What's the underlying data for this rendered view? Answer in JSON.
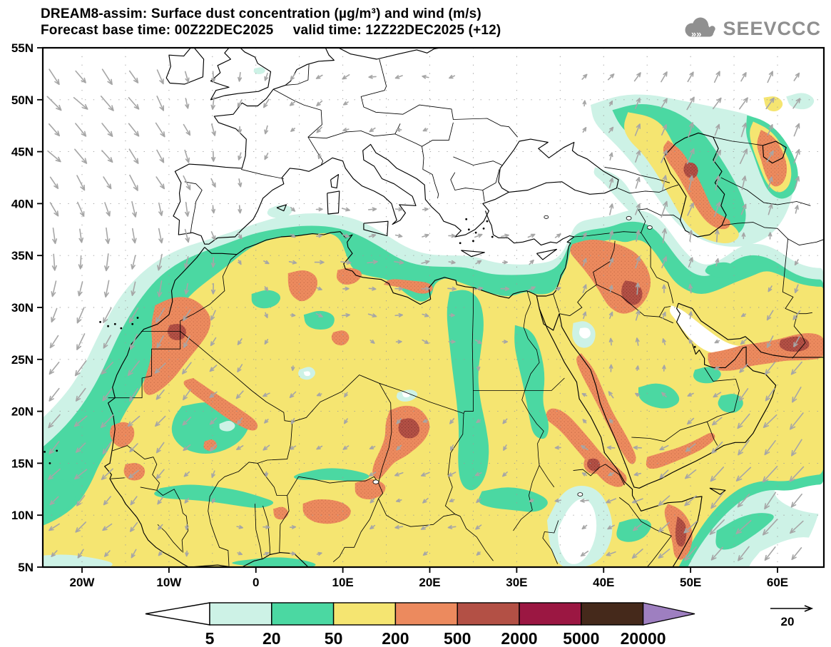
{
  "header": {
    "title_line1": "DREAM8-assim: Surface dust concentration (µg/m³) and wind (m/s)",
    "title_line2": "Forecast base time: 00Z22DEC2025     valid time: 12Z22DEC2025 (+12)",
    "logo_text": "SEEVCCC"
  },
  "axes": {
    "lat_labels": [
      "55N",
      "50N",
      "45N",
      "40N",
      "35N",
      "30N",
      "25N",
      "20N",
      "15N",
      "10N",
      "5N"
    ],
    "lon_labels": [
      "20W",
      "10W",
      "0",
      "10E",
      "20E",
      "30E",
      "40E",
      "50E",
      "60E"
    ]
  },
  "colorbar": {
    "labels": [
      "5",
      "20",
      "50",
      "200",
      "500",
      "2000",
      "5000",
      "20000"
    ],
    "below_color": "#ffffff",
    "segment_colors": [
      "#cdf2e6",
      "#4bd8a2",
      "#f5e571",
      "#ec8a5e",
      "#b35045",
      "#9b1742",
      "#45291b"
    ],
    "above_color": "#9e7fc0"
  },
  "wind_reference": {
    "label": "20"
  },
  "chart_data": {
    "type": "map_contour",
    "title": "DREAM8-assim: Surface dust concentration (µg/m³) and wind (m/s)",
    "forecast_base_time": "00Z22DEC2025",
    "valid_time": "12Z22DEC2025 (+12)",
    "variable": "Surface dust concentration",
    "units": "µg/m³",
    "wind_units": "m/s",
    "contour_levels": [
      5,
      20,
      50,
      200,
      500,
      2000,
      5000,
      20000
    ],
    "level_colors": [
      "#ffffff",
      "#cdf2e6",
      "#4bd8a2",
      "#f5e571",
      "#ec8a5e",
      "#b35045",
      "#9b1742",
      "#45291b",
      "#9e7fc0"
    ],
    "lon_range": [
      -24.5,
      65.3
    ],
    "lat_range": [
      5,
      55
    ],
    "lon_ticks": [
      "20W",
      "10W",
      "0",
      "10E",
      "20E",
      "30E",
      "40E",
      "50E",
      "60E"
    ],
    "lat_ticks": [
      "55N",
      "50N",
      "45N",
      "40N",
      "35N",
      "30N",
      "25N",
      "20N",
      "15N",
      "10N",
      "5N"
    ],
    "grid_interval_deg": 5,
    "wind_reference_ms": 20,
    "background_field": "50-200 µg/m³ (yellow) over most of the Sahara, Sahel and Arabian Peninsula; 20-50 and 5-20 µg/m³ fringes along the Mediterranean, Atlantic and Indian-Ocean margins; clear (white) over most of Europe, the Mediterranean and Black Sea",
    "dust_maxima": [
      {
        "lon": -9,
        "lat": 27.5,
        "level": "500-2000",
        "area": "Western Sahara / Morocco"
      },
      {
        "lon": 17.5,
        "lat": 18.3,
        "level": "500-2000",
        "area": "Chad (Bodélé)"
      },
      {
        "lon": 43.5,
        "lat": 31,
        "level": "500-2000",
        "area": "Iraq"
      },
      {
        "lon": 49,
        "lat": 8.5,
        "level": "500-2000",
        "area": "Somalia coast"
      },
      {
        "lon": 62,
        "lat": 26.5,
        "level": "500-2000",
        "area": "SE Iran / Pakistan coast"
      },
      {
        "lon": 50,
        "lat": 43,
        "level": "500-2000",
        "area": "Caspian / Caucasus plume"
      },
      {
        "lon": 39,
        "lat": 15,
        "level": "500-2000",
        "area": "Eritrea / Red Sea coast"
      }
    ],
    "wind_flow_notes": [
      "NE trade winds blowing SW off West Africa",
      "strong SW-ward monsoon flow over the Arabian Sea",
      "northward low-level flow driving the Caspian dust plume",
      "eastward flow along the central Mediterranean"
    ]
  }
}
